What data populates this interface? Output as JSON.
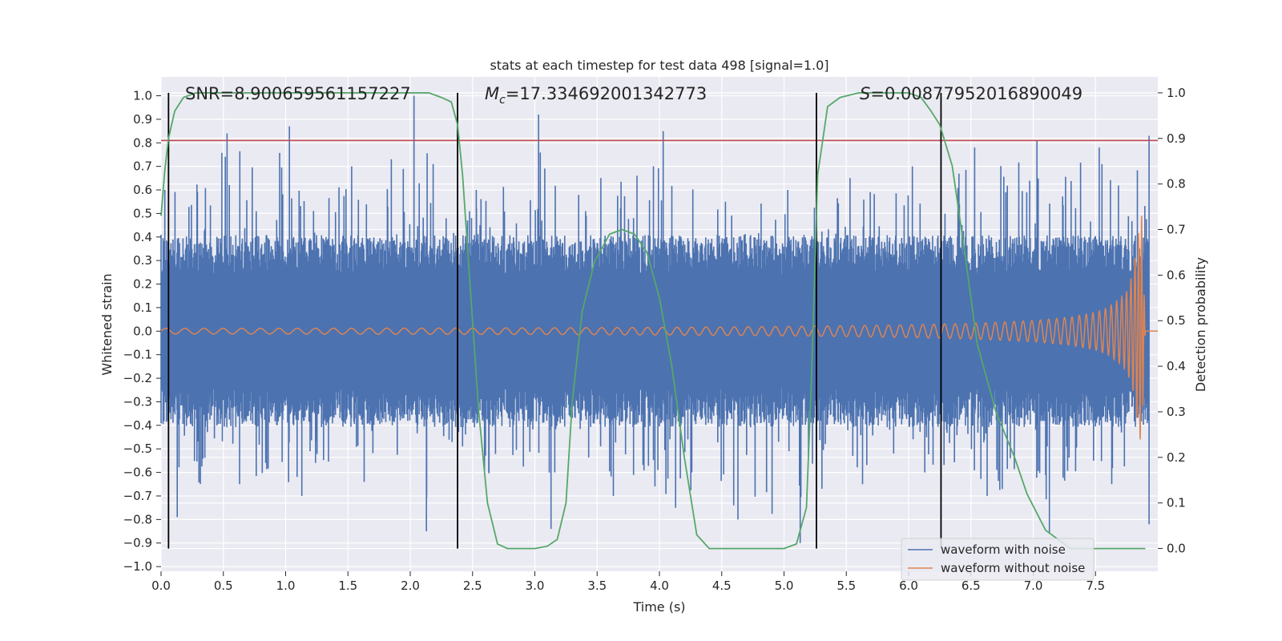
{
  "chart_data": {
    "type": "line",
    "title": "stats at each timestep for test data 498 [signal=1.0]",
    "xlabel": "Time (s)",
    "ylabel_left": "Whitened strain",
    "ylabel_right": "Detection probability",
    "xlim": [
      0.0,
      8.0
    ],
    "ylim_left": [
      -1.02,
      1.08
    ],
    "ylim_right": [
      -0.05,
      1.035
    ],
    "x_ticks": [
      0.0,
      0.5,
      1.0,
      1.5,
      2.0,
      2.5,
      3.0,
      3.5,
      4.0,
      4.5,
      5.0,
      5.5,
      6.0,
      6.5,
      7.0,
      7.5
    ],
    "x_tick_labels": [
      "0.0",
      "0.5",
      "1.0",
      "1.5",
      "2.0",
      "2.5",
      "3.0",
      "3.5",
      "4.0",
      "4.5",
      "5.0",
      "5.5",
      "6.0",
      "6.5",
      "7.0",
      "7.5"
    ],
    "y_left_ticks": [
      -1.0,
      -0.9,
      -0.8,
      -0.7,
      -0.6,
      -0.5,
      -0.4,
      -0.3,
      -0.2,
      -0.1,
      0.0,
      0.1,
      0.2,
      0.3,
      0.4,
      0.5,
      0.6,
      0.7,
      0.8,
      0.9,
      1.0
    ],
    "y_left_tick_labels": [
      "−1.0",
      "−0.9",
      "−0.8",
      "−0.7",
      "−0.6",
      "−0.5",
      "−0.4",
      "−0.3",
      "−0.2",
      "−0.1",
      "0.0",
      "0.1",
      "0.2",
      "0.3",
      "0.4",
      "0.5",
      "0.6",
      "0.7",
      "0.8",
      "0.9",
      "1.0"
    ],
    "y_right_ticks": [
      0.0,
      0.1,
      0.2,
      0.3,
      0.4,
      0.5,
      0.6,
      0.7,
      0.8,
      0.9,
      1.0
    ],
    "y_right_tick_labels": [
      "0.0",
      "0.1",
      "0.2",
      "0.3",
      "0.4",
      "0.5",
      "0.6",
      "0.7",
      "0.8",
      "0.9",
      "1.0"
    ],
    "annotations": {
      "snr": "SNR=8.900659561157227",
      "mc_prefix": "M",
      "mc_sub": "c",
      "mc_value": "=17.334692001342773",
      "s_prefix": "S",
      "s_value": "=0.00877952016890049"
    },
    "threshold_left": 0.81,
    "vertical_lines_x": [
      0.06,
      2.38,
      5.26,
      6.26
    ],
    "noise_envelope": {
      "t": [
        0.0,
        0.5,
        1.0,
        1.5,
        2.0,
        2.5,
        3.0,
        3.5,
        4.0,
        4.5,
        5.0,
        5.5,
        6.0,
        6.5,
        7.0,
        7.5,
        7.9
      ],
      "typical_amplitude": 0.34,
      "peak_upper": [
        0.6,
        0.84,
        0.87,
        0.7,
        1.0,
        0.6,
        0.92,
        0.65,
        0.85,
        0.55,
        0.6,
        0.65,
        0.7,
        0.78,
        0.81,
        0.78,
        0.83
      ],
      "peak_lower": [
        -0.79,
        -0.65,
        -0.7,
        -0.64,
        -0.85,
        -0.6,
        -0.84,
        -0.7,
        -0.75,
        -0.8,
        -0.9,
        -0.65,
        -0.6,
        -0.7,
        -0.86,
        -0.65,
        -0.82
      ]
    },
    "chirp_envelope": {
      "t": [
        0.0,
        1.0,
        2.0,
        3.0,
        4.0,
        5.0,
        5.5,
        6.0,
        6.5,
        7.0,
        7.3,
        7.5,
        7.6,
        7.7,
        7.75,
        7.8,
        7.84,
        7.87,
        7.9
      ],
      "amplitude": [
        0.012,
        0.012,
        0.013,
        0.014,
        0.016,
        0.02,
        0.023,
        0.027,
        0.033,
        0.045,
        0.06,
        0.08,
        0.1,
        0.14,
        0.17,
        0.25,
        0.4,
        0.5,
        0.0
      ]
    },
    "detection_probability": {
      "t": [
        0.0,
        0.03,
        0.06,
        0.11,
        0.18,
        0.28,
        0.4,
        0.6,
        1.0,
        2.0,
        2.15,
        2.25,
        2.33,
        2.38,
        2.42,
        2.48,
        2.55,
        2.62,
        2.7,
        2.78,
        2.86,
        3.0,
        3.1,
        3.18,
        3.25,
        3.3,
        3.38,
        3.48,
        3.6,
        3.7,
        3.8,
        3.9,
        4.0,
        4.1,
        4.2,
        4.3,
        4.4,
        4.55,
        4.8,
        5.0,
        5.1,
        5.18,
        5.22,
        5.27,
        5.35,
        5.45,
        5.6,
        5.8,
        6.0,
        6.1,
        6.18,
        6.25,
        6.35,
        6.45,
        6.55,
        6.7,
        6.85,
        6.95,
        7.1,
        7.3,
        7.5,
        7.7,
        7.9
      ],
      "values": [
        0.73,
        0.83,
        0.9,
        0.96,
        0.99,
        1.0,
        1.0,
        1.0,
        1.0,
        1.0,
        1.0,
        0.99,
        0.98,
        0.93,
        0.82,
        0.58,
        0.3,
        0.1,
        0.01,
        0.0,
        0.0,
        0.0,
        0.005,
        0.02,
        0.1,
        0.32,
        0.52,
        0.63,
        0.69,
        0.7,
        0.69,
        0.65,
        0.55,
        0.4,
        0.2,
        0.03,
        0.0,
        0.0,
        0.0,
        0.0,
        0.01,
        0.09,
        0.37,
        0.82,
        0.97,
        0.99,
        1.0,
        1.0,
        1.0,
        0.99,
        0.96,
        0.93,
        0.84,
        0.65,
        0.45,
        0.3,
        0.2,
        0.12,
        0.04,
        0.0,
        0.0,
        0.0,
        0.0
      ]
    },
    "series": [
      {
        "name": "waveform with noise",
        "color": "#4c72b0"
      },
      {
        "name": "waveform without noise",
        "color": "#dd8452"
      },
      {
        "name": "detection probability",
        "color": "#55a868"
      },
      {
        "name": "threshold",
        "color": "#c44e52"
      }
    ],
    "legend": {
      "position": "lower-right",
      "entries": [
        "waveform with noise",
        "waveform without noise"
      ]
    },
    "style": {
      "background": "#eaeaf2",
      "grid": "#ffffff",
      "event_line": "#000000"
    }
  }
}
